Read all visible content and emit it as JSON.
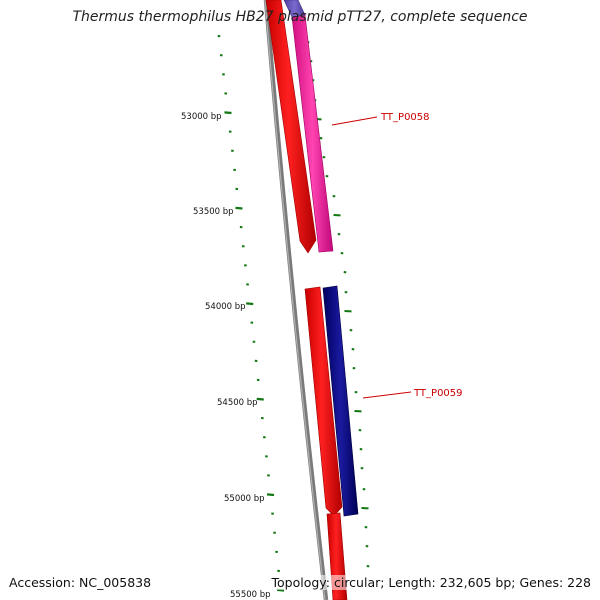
{
  "header": {
    "title": "Thermus thermophilus HB27 plasmid pTT27, complete sequence"
  },
  "footer": {
    "accession": "Accession: NC_005838",
    "summary": "Topology: circular; Length: 232,605 bp; Genes: 228"
  },
  "axis": {
    "ticks": [
      {
        "label": "53000 bp"
      },
      {
        "label": "53500 bp"
      },
      {
        "label": "54000 bp"
      },
      {
        "label": "54500 bp"
      },
      {
        "label": "55000 bp"
      },
      {
        "label": "55500 bp"
      }
    ]
  },
  "genes": [
    {
      "label": "TT_P0058",
      "color": "#ff1a9c"
    },
    {
      "label": "TT_P0059",
      "color": "#0a0a80"
    }
  ],
  "colors": {
    "backbone": "#808080",
    "forward_strand": "#ff0000",
    "label": "#cc0000",
    "tick": "#117711"
  }
}
